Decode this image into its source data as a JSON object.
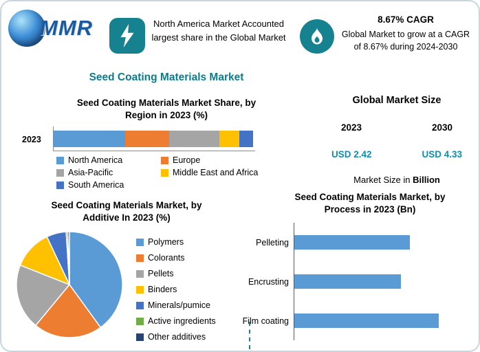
{
  "header": {
    "logo_text": "MMR",
    "highlight_left": {
      "icon": "lightning-icon",
      "text": "North America Market Accounted largest share in the Global Market"
    },
    "highlight_right": {
      "icon": "flame-icon",
      "title": "8.67% CAGR",
      "text": "Global Market to grow at a CAGR of 8.67% during 2024-2030"
    }
  },
  "title": "Seed Coating Materials Market",
  "market_size": {
    "title": "Global Market Size",
    "year_start": "2023",
    "year_end": "2030",
    "value_start": "USD 2.42",
    "value_end": "USD 4.33",
    "note_prefix": "Market Size in ",
    "note_bold": "Billion"
  },
  "colors": {
    "accent_teal": "#0b7c8c",
    "icon_teal": "#17828f",
    "value_teal": "#0e8fb0",
    "chart_blue": "#5B9BD5"
  },
  "chart_data": [
    {
      "type": "bar",
      "subtype": "stacked-horizontal",
      "title": "Seed Coating Materials Market Share, by Region in 2023 (%)",
      "row_label": "2023",
      "xlim": [
        0,
        100
      ],
      "series": [
        {
          "name": "North America",
          "value": 36,
          "color": "#5B9BD5"
        },
        {
          "name": "Europe",
          "value": 22,
          "color": "#ED7D31"
        },
        {
          "name": "Asia-Pacific",
          "value": 25,
          "color": "#A5A5A5"
        },
        {
          "name": "Middle East and Africa",
          "value": 10,
          "color": "#FFC000"
        },
        {
          "name": "South America",
          "value": 7,
          "color": "#4472C4"
        }
      ]
    },
    {
      "type": "pie",
      "title": "Seed Coating Materials Market, by Additive In 2023 (%)",
      "slices": [
        {
          "name": "Polymers",
          "value": 40,
          "color": "#5B9BD5"
        },
        {
          "name": "Colorants",
          "value": 21,
          "color": "#ED7D31"
        },
        {
          "name": "Pellets",
          "value": 20,
          "color": "#A5A5A5"
        },
        {
          "name": "Binders",
          "value": 12,
          "color": "#FFC000"
        },
        {
          "name": "Minerals/pumice",
          "value": 6,
          "color": "#4472C4"
        },
        {
          "name": "Active ingredients",
          "value": 0.5,
          "color": "#70AD47"
        },
        {
          "name": "Other additives",
          "value": 0.5,
          "color": "#264478"
        }
      ]
    },
    {
      "type": "bar",
      "subtype": "horizontal",
      "title": "Seed Coating Materials Market, by Process in 2023 (Bn)",
      "categories": [
        "Pelleting",
        "Encrusting",
        "Film coating"
      ],
      "values": [
        0.8,
        0.74,
        1.0
      ],
      "color": "#5B9BD5"
    }
  ]
}
